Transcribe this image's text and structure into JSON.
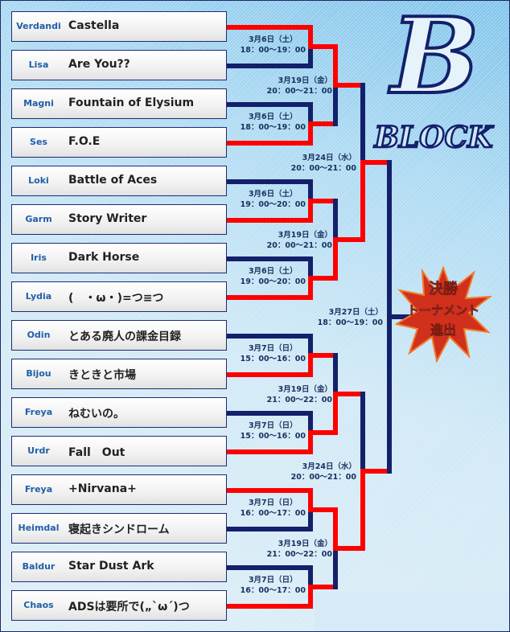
{
  "block_logo": {
    "letter": "B",
    "word": "BLOCK"
  },
  "badge": {
    "lines": [
      "決勝",
      "トーナメント",
      "進出"
    ]
  },
  "colors": {
    "winner_line": "#ff0000",
    "pending_line": "#13206b",
    "tag_text": "#1f5fa8",
    "badge": "#d0301c"
  },
  "entries": [
    {
      "tag": "Verdandi",
      "name": "Castella"
    },
    {
      "tag": "Lisa",
      "name": "Are You??"
    },
    {
      "tag": "Magni",
      "name": "Fountain of Elysium"
    },
    {
      "tag": "Ses",
      "name": "F.O.E"
    },
    {
      "tag": "Loki",
      "name": "Battle of Aces"
    },
    {
      "tag": "Garm",
      "name": "Story Writer"
    },
    {
      "tag": "Iris",
      "name": "Dark Horse"
    },
    {
      "tag": "Lydia",
      "name": "(　・ω・)=つ≡つ"
    },
    {
      "tag": "Odin",
      "name": "とある廃人の課金目録"
    },
    {
      "tag": "Bijou",
      "name": "きときと市場"
    },
    {
      "tag": "Freya",
      "name": "ねむいの。"
    },
    {
      "tag": "Urdr",
      "name": "Fall　Out"
    },
    {
      "tag": "Freya",
      "name": "+Nirvana+"
    },
    {
      "tag": "Heimdal",
      "name": "寝起きシンドローム"
    },
    {
      "tag": "Baldur",
      "name": "Star Dust Ark"
    },
    {
      "tag": "Chaos",
      "name": "ADSは要所で(„`ω´)つ"
    }
  ],
  "rounds": [
    {
      "matches": [
        {
          "date": "3月6日（土）",
          "time": "18：00～19：00",
          "winner": "top"
        },
        {
          "date": "3月6日（土）",
          "time": "18：00～19：00",
          "winner": "bottom"
        },
        {
          "date": "3月6日（土）",
          "time": "19：00～20：00",
          "winner": "bottom"
        },
        {
          "date": "3月6日（土）",
          "time": "19：00～20：00",
          "winner": "bottom"
        },
        {
          "date": "3月7日（日）",
          "time": "15：00～16：00",
          "winner": "bottom"
        },
        {
          "date": "3月7日（日）",
          "time": "15：00～16：00",
          "winner": "bottom"
        },
        {
          "date": "3月7日（日）",
          "time": "16：00～17：00",
          "winner": "top"
        },
        {
          "date": "3月7日（日）",
          "time": "16：00～17：00",
          "winner": "bottom"
        }
      ]
    },
    {
      "matches": [
        {
          "date": "3月19日（金）",
          "time": "20：00～21：00",
          "winner": "top"
        },
        {
          "date": "3月19日（金）",
          "time": "20：00～21：00",
          "winner": "bottom"
        },
        {
          "date": "3月19日（金）",
          "time": "21：00～22：00",
          "winner": "bottom"
        },
        {
          "date": "3月19日（金）",
          "time": "21：00～22：00",
          "winner": "top"
        }
      ]
    },
    {
      "matches": [
        {
          "date": "3月24日（水）",
          "time": "20：00～21：00",
          "winner": "bottom"
        },
        {
          "date": "3月24日（水）",
          "time": "20：00～21：00",
          "winner": "bottom"
        }
      ]
    },
    {
      "matches": [
        {
          "date": "3月27日（土）",
          "time": "18：00～19：00",
          "winner": null
        }
      ]
    }
  ]
}
